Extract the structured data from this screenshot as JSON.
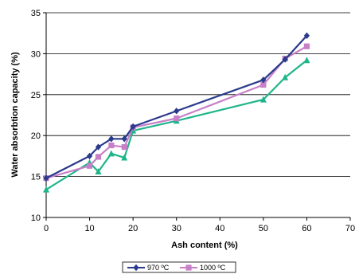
{
  "chart_data": {
    "type": "line",
    "title": "",
    "xlabel": "Ash content (%)",
    "ylabel": "Water absorbtion capacity (%)",
    "xlim": [
      0,
      70
    ],
    "ylim": [
      10,
      35
    ],
    "xticks": [
      0,
      10,
      20,
      30,
      40,
      50,
      60,
      70
    ],
    "yticks": [
      10,
      15,
      20,
      25,
      30,
      35
    ],
    "grid": "horizontal",
    "legend_position": "bottom",
    "series": [
      {
        "name": "970 ºC",
        "color": "#2a3a8c",
        "marker": "diamond",
        "x": [
          0,
          10,
          12,
          15,
          18,
          20,
          30,
          50,
          55,
          60
        ],
        "y": [
          14.8,
          17.5,
          18.6,
          19.6,
          19.6,
          21.1,
          23.0,
          26.8,
          29.3,
          32.2
        ]
      },
      {
        "name": "1000 ºC",
        "color": "#c77fc8",
        "marker": "square",
        "x": [
          0,
          10,
          12,
          15,
          18,
          20,
          30,
          50,
          55,
          60
        ],
        "y": [
          14.8,
          16.3,
          17.4,
          18.8,
          18.6,
          21.0,
          22.1,
          26.2,
          29.4,
          30.9
        ]
      },
      {
        "name": "",
        "color": "#1fb58a",
        "marker": "triangle",
        "x": [
          0,
          10,
          12,
          15,
          18,
          20,
          30,
          50,
          55,
          60
        ],
        "y": [
          13.4,
          16.7,
          15.6,
          17.8,
          17.3,
          20.6,
          21.8,
          24.4,
          27.1,
          29.2
        ]
      }
    ]
  }
}
